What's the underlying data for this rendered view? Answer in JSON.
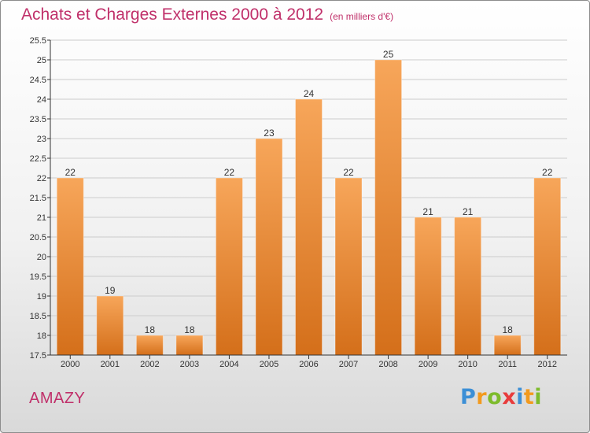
{
  "header": {
    "title": "Achats et Charges Externes 2000 à 2012",
    "unit": "(en milliers d'€)"
  },
  "footer": {
    "commune": "AMAZY",
    "brand": "Proxiti"
  },
  "colors": {
    "title": "#c0306a",
    "bar_top": "#f7a65a",
    "bar_bottom": "#d46f1a",
    "grid": "#cccccc",
    "axis": "#333333"
  },
  "chart_data": {
    "type": "bar",
    "title": "Achats et Charges Externes 2000 à 2012",
    "xlabel": "",
    "ylabel": "",
    "categories": [
      "2000",
      "2001",
      "2002",
      "2003",
      "2004",
      "2005",
      "2006",
      "2007",
      "2008",
      "2009",
      "2010",
      "2011",
      "2012"
    ],
    "values": [
      22,
      19,
      18,
      18,
      22,
      23,
      24,
      22,
      25,
      21,
      21,
      18,
      22
    ],
    "data_labels": [
      "22",
      "19",
      "18",
      "18",
      "22",
      "23",
      "24",
      "22",
      "25",
      "21",
      "21",
      "18",
      "22"
    ],
    "ylim": [
      17.5,
      25.5
    ],
    "yticks": [
      "17.5",
      "18",
      "18.5",
      "19",
      "19.5",
      "20",
      "20.5",
      "21",
      "21.5",
      "22",
      "22.5",
      "23",
      "23.5",
      "24",
      "24.5",
      "25",
      "25.5"
    ],
    "grid": true,
    "legend": "none"
  }
}
